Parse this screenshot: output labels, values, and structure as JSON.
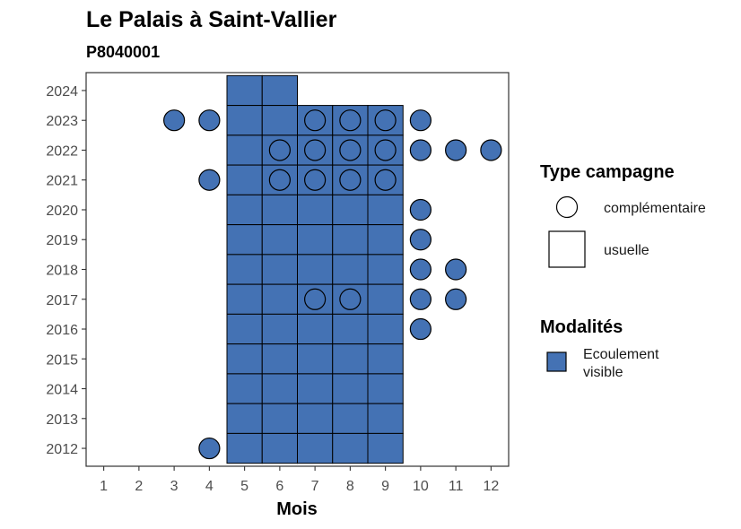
{
  "chart_data": {
    "type": "heatmap",
    "title": "Le Palais à Saint-Vallier",
    "subtitle": "P8040001",
    "xlabel": "Mois",
    "ylabel": "",
    "x_ticks": [
      "1",
      "2",
      "3",
      "4",
      "5",
      "6",
      "7",
      "8",
      "9",
      "10",
      "11",
      "12"
    ],
    "y_ticks": [
      "2012",
      "2013",
      "2014",
      "2015",
      "2016",
      "2017",
      "2018",
      "2019",
      "2020",
      "2021",
      "2022",
      "2023",
      "2024"
    ],
    "xlim": [
      0.5,
      12.5
    ],
    "ylim": [
      2011.4,
      2024.6
    ],
    "fill_color": "#4472b4",
    "usuelle": [
      {
        "year": 2024,
        "months": [
          5,
          6
        ]
      },
      {
        "year": 2023,
        "months": [
          5,
          6,
          7,
          8,
          9
        ]
      },
      {
        "year": 2022,
        "months": [
          5,
          6,
          7,
          8,
          9
        ]
      },
      {
        "year": 2021,
        "months": [
          5,
          6,
          7,
          8,
          9
        ]
      },
      {
        "year": 2020,
        "months": [
          5,
          6,
          7,
          8,
          9
        ]
      },
      {
        "year": 2019,
        "months": [
          5,
          6,
          7,
          8,
          9
        ]
      },
      {
        "year": 2018,
        "months": [
          5,
          6,
          7,
          8,
          9
        ]
      },
      {
        "year": 2017,
        "months": [
          5,
          6,
          7,
          8,
          9
        ]
      },
      {
        "year": 2016,
        "months": [
          5,
          6,
          7,
          8,
          9
        ]
      },
      {
        "year": 2015,
        "months": [
          5,
          6,
          7,
          8,
          9
        ]
      },
      {
        "year": 2014,
        "months": [
          5,
          6,
          7,
          8,
          9
        ]
      },
      {
        "year": 2013,
        "months": [
          5,
          6,
          7,
          8,
          9
        ]
      },
      {
        "year": 2012,
        "months": [
          5,
          6,
          7,
          8,
          9
        ]
      }
    ],
    "complementaire": [
      {
        "year": 2023,
        "months": [
          3,
          4,
          7,
          8,
          9,
          10
        ]
      },
      {
        "year": 2022,
        "months": [
          6,
          7,
          8,
          9,
          10,
          11,
          12
        ]
      },
      {
        "year": 2021,
        "months": [
          4,
          6,
          7,
          8,
          9
        ]
      },
      {
        "year": 2020,
        "months": [
          10
        ]
      },
      {
        "year": 2019,
        "months": [
          10
        ]
      },
      {
        "year": 2018,
        "months": [
          10,
          11
        ]
      },
      {
        "year": 2017,
        "months": [
          7,
          8,
          10,
          11
        ]
      },
      {
        "year": 2016,
        "months": [
          10
        ]
      },
      {
        "year": 2012,
        "months": [
          4
        ]
      }
    ],
    "legend": {
      "type_title": "Type campagne",
      "type_items": [
        "complémentaire",
        "usuelle"
      ],
      "modalites_title": "Modalités",
      "modalites_items": [
        {
          "label_lines": [
            "Ecoulement",
            "visible"
          ],
          "color": "#4472b4"
        }
      ],
      "placement": "right"
    }
  }
}
